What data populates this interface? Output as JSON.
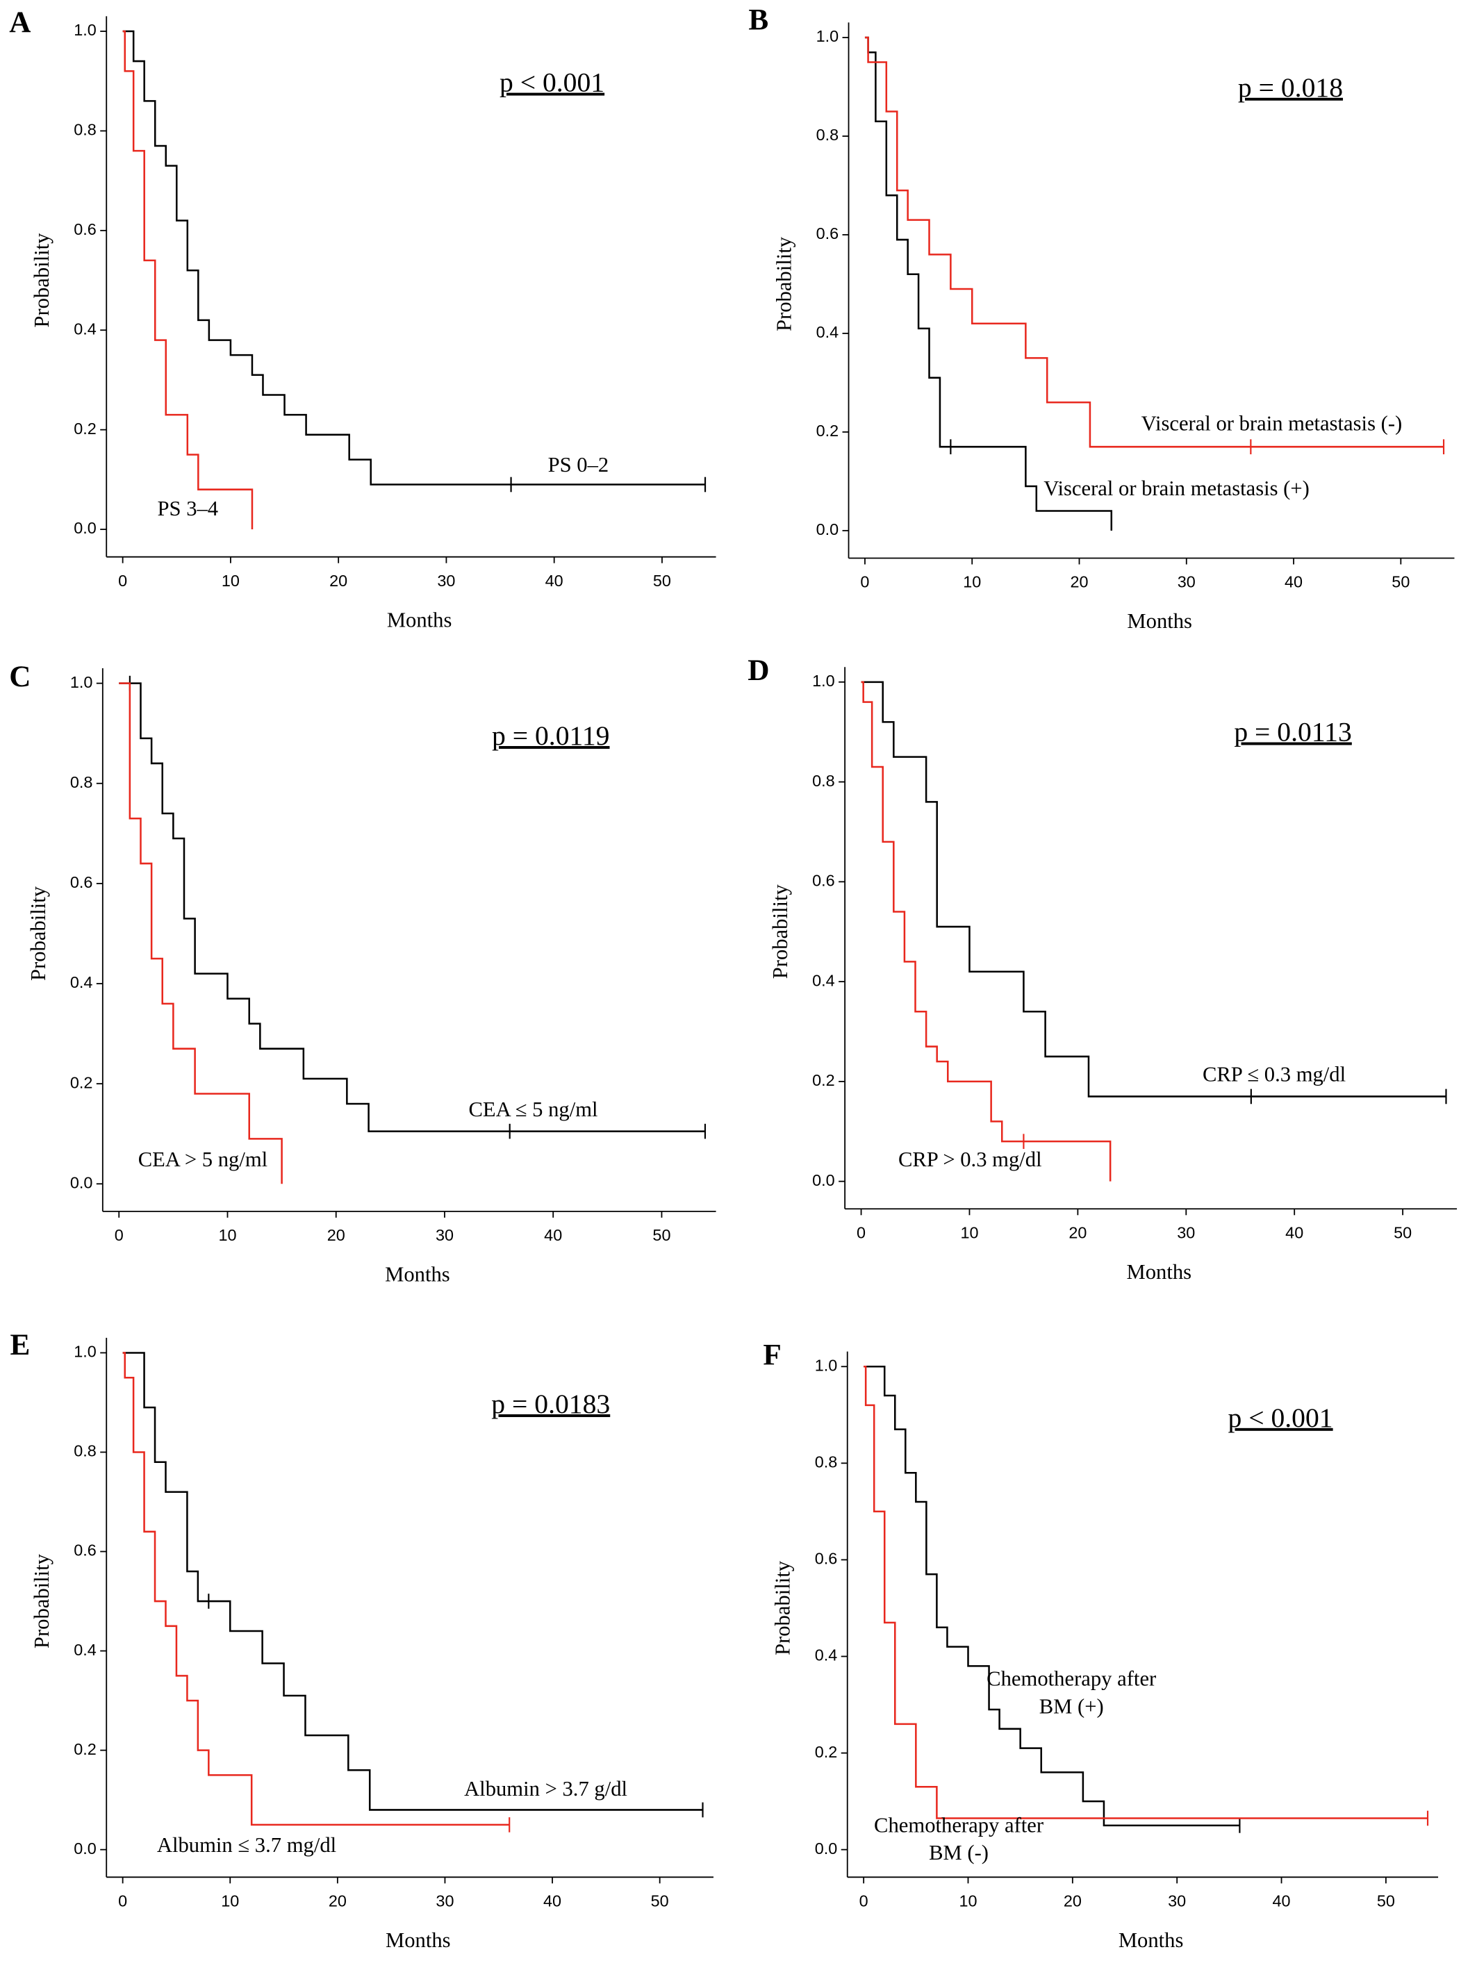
{
  "chart_data": [
    {
      "type": "line",
      "panel": "A",
      "p_value": "p < 0.001",
      "xlabel": "Months",
      "ylabel": "Probability",
      "xlim": [
        0,
        55
      ],
      "ylim": [
        0,
        1
      ],
      "xticks": [
        0,
        10,
        20,
        30,
        40,
        50
      ],
      "yticks": [
        {
          "value": 0,
          "label": "0.0"
        },
        0.2,
        0.4,
        0.6,
        0.8,
        {
          "value": 1,
          "label": "1.0"
        }
      ],
      "series": [
        {
          "name": "PS 0–2",
          "color": "#000000",
          "x": [
            0,
            1,
            2,
            3,
            4,
            5,
            6,
            7,
            8,
            10,
            12,
            13,
            15,
            17,
            21,
            23,
            54
          ],
          "values": [
            1,
            0.94,
            0.86,
            0.77,
            0.73,
            0.62,
            0.52,
            0.42,
            0.38,
            0.35,
            0.31,
            0.27,
            0.23,
            0.19,
            0.14,
            0.09,
            0.09
          ],
          "censored": [
            36,
            54
          ]
        },
        {
          "name": "PS 3–4",
          "color": "#e8281e",
          "x": [
            0,
            0.2,
            1,
            2,
            3,
            4,
            6,
            7,
            12
          ],
          "values": [
            1,
            0.92,
            0.76,
            0.54,
            0.38,
            0.23,
            0.15,
            0.08,
            0
          ],
          "censored": []
        }
      ]
    },
    {
      "type": "line",
      "panel": "B",
      "p_value": "p = 0.018",
      "xlabel": "Months",
      "ylabel": "Probability",
      "xlim": [
        0,
        55
      ],
      "ylim": [
        0,
        1
      ],
      "xticks": [
        0,
        10,
        20,
        30,
        40,
        50
      ],
      "yticks": [
        {
          "value": 0,
          "label": "0.0"
        },
        0.2,
        0.4,
        0.6,
        0.8,
        {
          "value": 1,
          "label": "1.0"
        }
      ],
      "series": [
        {
          "name": "Visceral or brain metastasis (+)",
          "color": "#000000",
          "x": [
            0,
            0.3,
            1,
            2,
            3,
            4,
            5,
            6,
            7,
            15,
            16,
            23
          ],
          "values": [
            1,
            0.97,
            0.83,
            0.68,
            0.59,
            0.52,
            0.41,
            0.31,
            0.17,
            0.09,
            0.04,
            0
          ],
          "censored": [
            8
          ]
        },
        {
          "name": "Visceral or brain metastasis (-)",
          "color": "#e8281e",
          "x": [
            0,
            0.3,
            2,
            3,
            4,
            6,
            8,
            10,
            15,
            17,
            21,
            54
          ],
          "values": [
            1,
            0.95,
            0.85,
            0.69,
            0.63,
            0.56,
            0.49,
            0.42,
            0.35,
            0.26,
            0.17,
            0.17
          ],
          "censored": [
            36,
            54
          ]
        }
      ]
    },
    {
      "type": "line",
      "panel": "C",
      "p_value": "p = 0.0119",
      "xlabel": "Months",
      "ylabel": "Probability",
      "xlim": [
        0,
        55
      ],
      "ylim": [
        0,
        1
      ],
      "xticks": [
        0,
        10,
        20,
        30,
        40,
        50
      ],
      "yticks": [
        {
          "value": 0,
          "label": "0.0"
        },
        0.2,
        0.4,
        0.6,
        0.8,
        {
          "value": 1,
          "label": "1.0"
        }
      ],
      "series": [
        {
          "name": "CEA ≤ 5 ng/ml",
          "color": "#000000",
          "x": [
            0,
            2,
            3,
            4,
            5,
            6,
            7,
            10,
            12,
            13,
            17,
            21,
            23,
            54
          ],
          "values": [
            1,
            0.89,
            0.84,
            0.74,
            0.69,
            0.53,
            0.42,
            0.37,
            0.32,
            0.27,
            0.21,
            0.16,
            0.105,
            0.105
          ],
          "censored": [
            1,
            36,
            54
          ]
        },
        {
          "name": "CEA > 5 ng/ml",
          "color": "#e8281e",
          "x": [
            0,
            1,
            2,
            3,
            4,
            5,
            7,
            12,
            15
          ],
          "values": [
            1,
            0.73,
            0.64,
            0.45,
            0.36,
            0.27,
            0.18,
            0.09,
            0
          ],
          "censored": []
        }
      ]
    },
    {
      "type": "line",
      "panel": "D",
      "p_value": "p = 0.0113",
      "xlabel": "Months",
      "ylabel": "Probability",
      "xlim": [
        0,
        55
      ],
      "ylim": [
        0,
        1
      ],
      "xticks": [
        0,
        10,
        20,
        30,
        40,
        50
      ],
      "yticks": [
        {
          "value": 0,
          "label": "0.0"
        },
        0.2,
        0.4,
        0.6,
        0.8,
        {
          "value": 1,
          "label": "1.0"
        }
      ],
      "series": [
        {
          "name": "CRP ≤ 0.3 mg/dl",
          "color": "#000000",
          "x": [
            0,
            2,
            3,
            6,
            7,
            10,
            15,
            17,
            21,
            54
          ],
          "values": [
            1,
            0.92,
            0.85,
            0.76,
            0.51,
            0.42,
            0.34,
            0.25,
            0.17,
            0.17
          ],
          "censored": [
            36,
            54
          ]
        },
        {
          "name": "CRP > 0.3 mg/dl",
          "color": "#e8281e",
          "x": [
            0,
            0.2,
            1,
            2,
            3,
            4,
            5,
            6,
            7,
            8,
            12,
            13,
            23
          ],
          "values": [
            1,
            0.96,
            0.83,
            0.68,
            0.54,
            0.44,
            0.34,
            0.27,
            0.24,
            0.2,
            0.12,
            0.08,
            0
          ],
          "censored": [
            15
          ]
        }
      ]
    },
    {
      "type": "line",
      "panel": "E",
      "p_value": "p = 0.0183",
      "xlabel": "Months",
      "ylabel": "Probability",
      "xlim": [
        0,
        55
      ],
      "ylim": [
        0,
        1
      ],
      "xticks": [
        0,
        10,
        20,
        30,
        40,
        50
      ],
      "yticks": [
        {
          "value": 0,
          "label": "0.0"
        },
        0.2,
        0.4,
        0.6,
        0.8,
        {
          "value": 1,
          "label": "1.0"
        }
      ],
      "series": [
        {
          "name": "Albumin > 3.7 g/dl",
          "color": "#000000",
          "x": [
            0,
            2,
            3,
            4,
            6,
            7,
            10,
            13,
            15,
            17,
            21,
            23,
            54
          ],
          "values": [
            1,
            0.89,
            0.78,
            0.72,
            0.56,
            0.5,
            0.44,
            0.375,
            0.31,
            0.23,
            0.16,
            0.08,
            0.08
          ],
          "censored": [
            8,
            54
          ]
        },
        {
          "name": "Albumin ≤ 3.7 mg/dl",
          "color": "#e8281e",
          "x": [
            0,
            0.2,
            1,
            2,
            3,
            4,
            5,
            6,
            7,
            8,
            12,
            36
          ],
          "values": [
            1,
            0.95,
            0.8,
            0.64,
            0.5,
            0.45,
            0.35,
            0.3,
            0.2,
            0.15,
            0.05,
            0.05
          ],
          "censored": [
            36
          ]
        }
      ]
    },
    {
      "type": "line",
      "panel": "F",
      "p_value": "p < 0.001",
      "xlabel": "Months",
      "ylabel": "Probability",
      "xlim": [
        0,
        55
      ],
      "ylim": [
        0,
        1
      ],
      "xticks": [
        0,
        10,
        20,
        30,
        40,
        50
      ],
      "yticks": [
        {
          "value": 0,
          "label": "0.0"
        },
        0.2,
        0.4,
        0.6,
        0.8,
        {
          "value": 1,
          "label": "1.0"
        }
      ],
      "series": [
        {
          "name": "Chemotherapy after BM (+)",
          "color": "#000000",
          "x": [
            0,
            2,
            3,
            4,
            5,
            6,
            7,
            8,
            10,
            12,
            13,
            15,
            17,
            21,
            23,
            36
          ],
          "values": [
            1,
            0.94,
            0.87,
            0.78,
            0.72,
            0.57,
            0.46,
            0.42,
            0.38,
            0.29,
            0.25,
            0.21,
            0.16,
            0.1,
            0.05,
            0.05
          ],
          "censored": [
            36
          ]
        },
        {
          "name": "Chemotherapy after BM (-)",
          "color": "#e8281e",
          "x": [
            0,
            0.2,
            1,
            2,
            3,
            5,
            7,
            54
          ],
          "values": [
            1,
            0.92,
            0.7,
            0.47,
            0.26,
            0.13,
            0.065,
            0.065
          ],
          "censored": [
            54
          ]
        }
      ]
    }
  ]
}
